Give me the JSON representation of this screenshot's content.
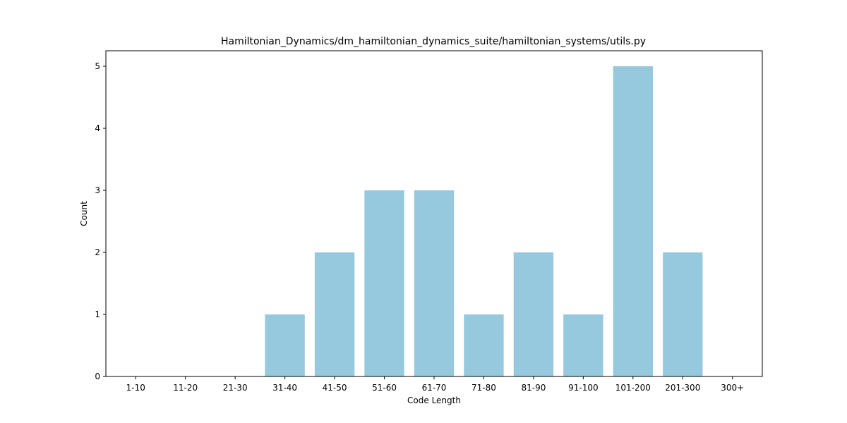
{
  "chart_data": {
    "type": "bar",
    "title": "Hamiltonian_Dynamics/dm_hamiltonian_dynamics_suite/hamiltonian_systems/utils.py",
    "xlabel": "Code Length",
    "ylabel": "Count",
    "categories": [
      "1-10",
      "11-20",
      "21-30",
      "31-40",
      "41-50",
      "51-60",
      "61-70",
      "71-80",
      "81-90",
      "91-100",
      "101-200",
      "201-300",
      "300+"
    ],
    "values": [
      0,
      0,
      0,
      1,
      2,
      3,
      3,
      1,
      2,
      1,
      5,
      2,
      0
    ],
    "ylim": [
      0,
      5.25
    ],
    "yticks": [
      0,
      1,
      2,
      3,
      4,
      5
    ],
    "bar_color": "#96c9dd",
    "grid": false,
    "legend": "none"
  }
}
